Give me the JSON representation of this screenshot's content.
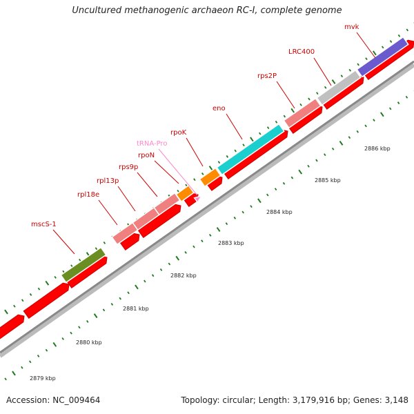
{
  "title": "Uncultured methanogenic archaeon RC-I, complete genome",
  "footer": {
    "accession": "Accession: NC_009464",
    "stats": "Topology: circular; Length: 3,179,916 bp; Genes: 3,148"
  },
  "colors": {
    "cds_red": "#ff0000",
    "backbone": "#999999",
    "tick_green": "#1f7a1f",
    "label_red": "#cc0000",
    "trna_pink": "#ff88cc"
  },
  "genes": [
    {
      "label": "mscS-1",
      "color": "#6b8e23",
      "label_color": "#cc0000"
    },
    {
      "label": "rpl18e",
      "color": "#f08080",
      "label_color": "#cc0000"
    },
    {
      "label": "rpl13p",
      "color": "#f08080",
      "label_color": "#cc0000"
    },
    {
      "label": "rps9p",
      "color": "#f08080",
      "label_color": "#cc0000"
    },
    {
      "label": "rpoN",
      "color": "#ff8c00",
      "label_color": "#cc0000"
    },
    {
      "label": "tRNA-Pro",
      "color": "#ff88cc",
      "label_color": "#ff88cc"
    },
    {
      "label": "rpoK",
      "color": "#ff8c00",
      "label_color": "#cc0000"
    },
    {
      "label": "eno",
      "color": "#1ccfcf",
      "label_color": "#cc0000"
    },
    {
      "label": "rps2P",
      "color": "#f08080",
      "label_color": "#cc0000"
    },
    {
      "label": "LRC400",
      "color": "#c0c0c0",
      "label_color": "#cc0000"
    },
    {
      "label": "mvk",
      "color": "#6a5acd",
      "label_color": "#cc0000"
    }
  ],
  "ticks": [
    "2879 kbp",
    "2880 kbp",
    "2881 kbp",
    "2882 kbp",
    "2883 kbp",
    "2884 kbp",
    "2885 kbp",
    "2886 kbp"
  ]
}
